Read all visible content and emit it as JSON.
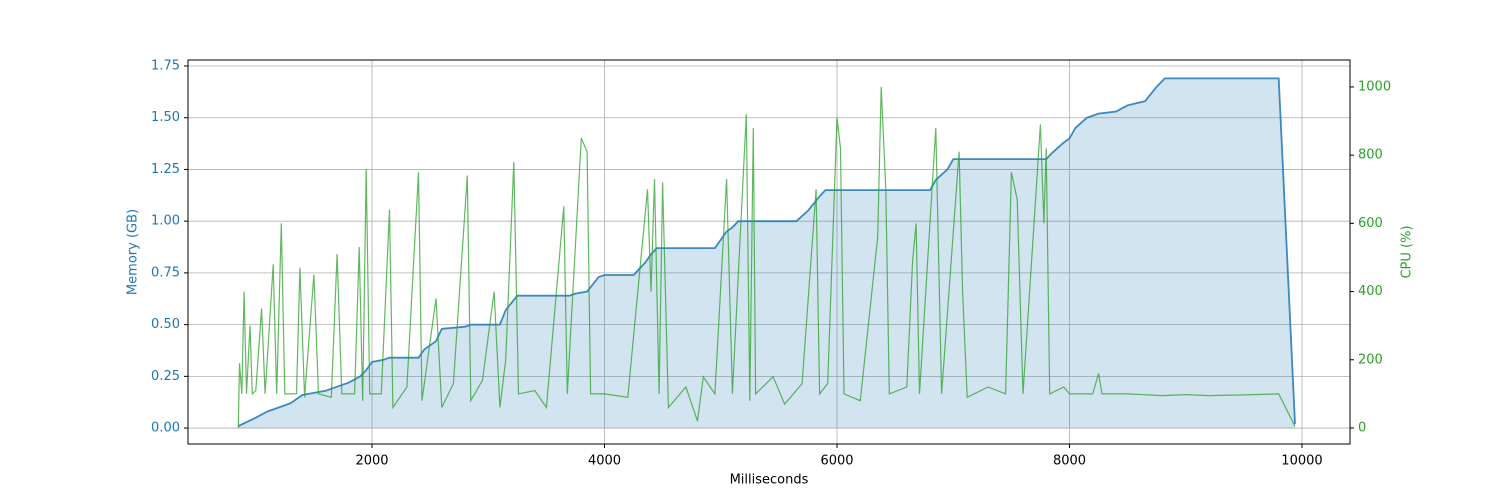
{
  "chart_data": {
    "type": "line",
    "x_label": "Milliseconds",
    "y_label": "Memory (GB)",
    "y2_label": "CPU (%)",
    "xlim": [
      417,
      10413
    ],
    "xticks": [
      2000,
      4000,
      6000,
      8000,
      10000
    ],
    "ylim": [
      -0.077,
      1.779
    ],
    "yticks": [
      {
        "value": 0,
        "label": "0.00"
      },
      0.25,
      {
        "value": 0.5,
        "label": "0.50"
      },
      0.75,
      {
        "value": 1,
        "label": "1.00"
      },
      1.25,
      {
        "value": 1.5,
        "label": "1.50"
      },
      1.75
    ],
    "y2lim": [
      -47,
      1079
    ],
    "y2ticks": [
      0,
      200,
      400,
      600,
      800,
      1000
    ],
    "grid": true,
    "series": [
      {
        "color": "#1f77b4",
        "fill": true,
        "axis": "y",
        "x": [
          850,
          1000,
          1100,
          1200,
          1300,
          1400,
          1500,
          1600,
          1700,
          1800,
          1900,
          1950,
          2000,
          2100,
          2150,
          2400,
          2450,
          2550,
          2600,
          2800,
          2850,
          3100,
          3150,
          3250,
          3700,
          3750,
          3850,
          3950,
          4000,
          4250,
          4350,
          4400,
          4450,
          4950,
          5050,
          5100,
          5150,
          5650,
          5750,
          5850,
          5900,
          6800,
          6850,
          6950,
          7000,
          7800,
          7850,
          7950,
          8000,
          8050,
          8150,
          8250,
          8400,
          8500,
          8650,
          8750,
          8820,
          9800,
          9940
        ],
        "values": [
          0.01,
          0.05,
          0.08,
          0.1,
          0.12,
          0.16,
          0.17,
          0.18,
          0.2,
          0.22,
          0.25,
          0.28,
          0.32,
          0.33,
          0.34,
          0.34,
          0.38,
          0.42,
          0.48,
          0.49,
          0.5,
          0.5,
          0.57,
          0.64,
          0.64,
          0.65,
          0.66,
          0.73,
          0.74,
          0.74,
          0.8,
          0.84,
          0.87,
          0.87,
          0.95,
          0.97,
          1.0,
          1.0,
          1.05,
          1.12,
          1.15,
          1.15,
          1.2,
          1.25,
          1.3,
          1.3,
          1.33,
          1.38,
          1.4,
          1.45,
          1.5,
          1.52,
          1.53,
          1.56,
          1.58,
          1.65,
          1.69,
          1.69,
          0.02
        ]
      },
      {
        "color": "#2ca02c",
        "fill": false,
        "axis": "y2",
        "x": [
          850,
          860,
          880,
          900,
          920,
          950,
          970,
          1000,
          1050,
          1080,
          1150,
          1180,
          1220,
          1250,
          1350,
          1380,
          1420,
          1500,
          1540,
          1650,
          1700,
          1740,
          1850,
          1890,
          1920,
          1950,
          1980,
          2080,
          2150,
          2180,
          2300,
          2400,
          2430,
          2550,
          2600,
          2700,
          2820,
          2850,
          2950,
          3050,
          3100,
          3150,
          3220,
          3260,
          3400,
          3500,
          3650,
          3680,
          3800,
          3850,
          3880,
          4000,
          4200,
          4370,
          4400,
          4430,
          4470,
          4500,
          4550,
          4700,
          4800,
          4850,
          4950,
          5050,
          5100,
          5220,
          5250,
          5280,
          5300,
          5450,
          5550,
          5700,
          5820,
          5850,
          5920,
          6000,
          6030,
          6060,
          6200,
          6350,
          6380,
          6420,
          6450,
          6600,
          6650,
          6680,
          6710,
          6850,
          6900,
          7050,
          7080,
          7120,
          7300,
          7450,
          7500,
          7550,
          7600,
          7750,
          7780,
          7800,
          7830,
          7950,
          8000,
          8200,
          8250,
          8280,
          8500,
          8800,
          9000,
          9200,
          9500,
          9800,
          9940
        ],
        "values": [
          0,
          190,
          100,
          400,
          100,
          300,
          100,
          110,
          350,
          100,
          480,
          100,
          600,
          100,
          100,
          470,
          90,
          450,
          100,
          90,
          510,
          100,
          100,
          530,
          80,
          760,
          100,
          100,
          640,
          60,
          120,
          750,
          80,
          380,
          60,
          130,
          740,
          80,
          140,
          400,
          60,
          200,
          780,
          100,
          110,
          60,
          650,
          100,
          850,
          810,
          100,
          100,
          90,
          700,
          400,
          730,
          100,
          720,
          60,
          120,
          20,
          150,
          100,
          730,
          100,
          920,
          80,
          880,
          100,
          150,
          70,
          130,
          700,
          100,
          130,
          910,
          820,
          100,
          80,
          560,
          1000,
          700,
          100,
          120,
          490,
          600,
          100,
          880,
          100,
          810,
          400,
          90,
          120,
          100,
          750,
          670,
          100,
          890,
          600,
          820,
          100,
          120,
          100,
          100,
          160,
          100,
          100,
          95,
          98,
          95,
          97,
          100,
          5
        ]
      }
    ]
  }
}
